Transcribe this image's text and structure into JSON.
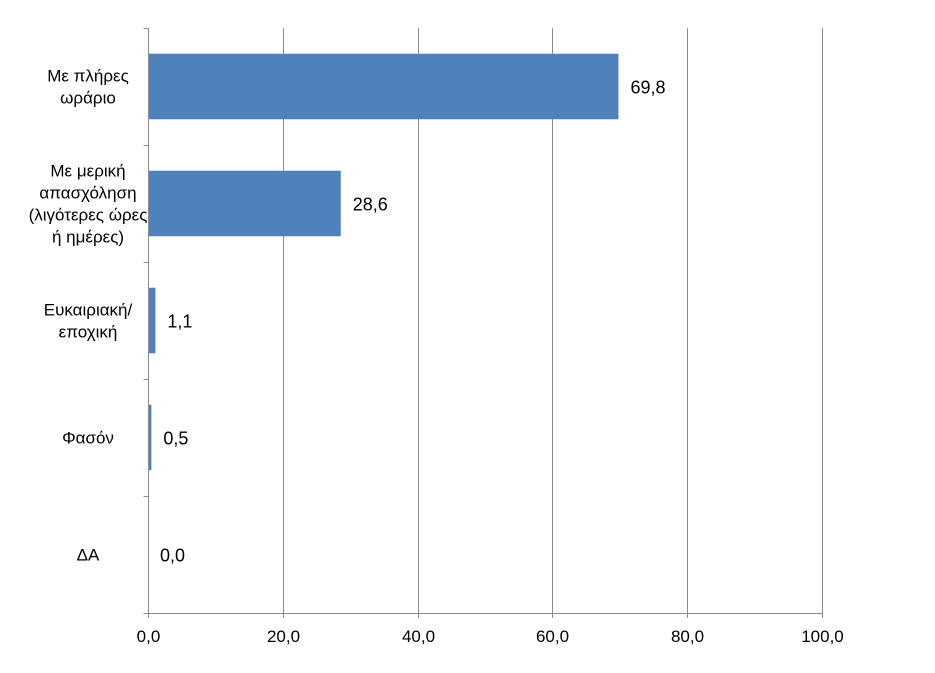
{
  "chart_data": {
    "type": "bar",
    "orientation": "horizontal",
    "categories": [
      [
        "Με πλήρες",
        "ωράριο"
      ],
      [
        "Με μερική",
        "απασχόληση",
        "(λιγότερες ώρες",
        "ή ημέρες)"
      ],
      [
        "Ευκαιριακή/",
        "εποχική"
      ],
      [
        "Φασόν"
      ],
      [
        "ΔΑ"
      ]
    ],
    "values": [
      69.8,
      28.6,
      1.1,
      0.5,
      0.0
    ],
    "data_labels": [
      "69,8",
      "28,6",
      "1,1",
      "0,5",
      "0,0"
    ],
    "xlim": [
      0,
      100
    ],
    "x_ticks": [
      0,
      20,
      40,
      60,
      80,
      100
    ],
    "x_tick_labels": [
      "0,0",
      "20,0",
      "40,0",
      "60,0",
      "80,0",
      "100,0"
    ],
    "grid": "vertical",
    "bar_color": "#4f81bd",
    "title": "",
    "xlabel": "",
    "ylabel": ""
  }
}
